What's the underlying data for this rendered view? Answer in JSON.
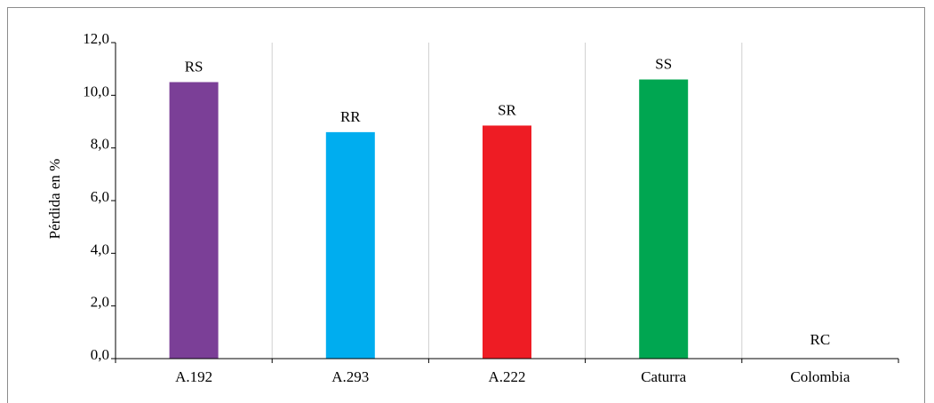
{
  "chart_data": {
    "type": "bar",
    "title": "",
    "xlabel": "",
    "ylabel": "Pérdida en %",
    "ylim": [
      0,
      12
    ],
    "yticks": [
      "0,0",
      "2,0",
      "4,0",
      "6,0",
      "8,0",
      "10,0",
      "12,0"
    ],
    "grid": "vertical category separators",
    "categories": [
      "A.192",
      "A.293",
      "A.222",
      "Caturra",
      "Colombia"
    ],
    "values": [
      10.5,
      8.6,
      8.85,
      10.6,
      0
    ],
    "data_labels": [
      "RS",
      "RR",
      "SR",
      "SS",
      "RC"
    ],
    "colors": [
      "#7b3f97",
      "#00adef",
      "#ee1c24",
      "#00a651",
      "#ffffff"
    ]
  }
}
